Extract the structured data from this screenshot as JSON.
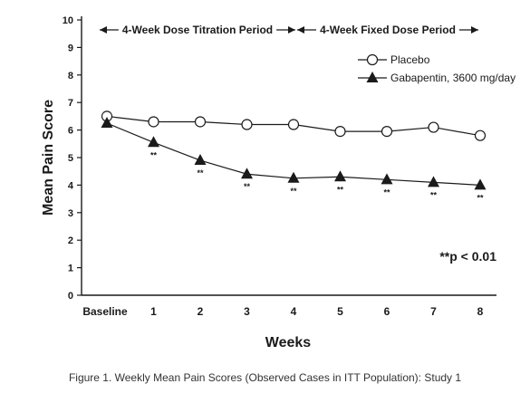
{
  "chart_data": {
    "type": "line",
    "categories": [
      "Baseline",
      "1",
      "2",
      "3",
      "4",
      "5",
      "6",
      "7",
      "8"
    ],
    "series": [
      {
        "name": "Placebo",
        "marker": "open-circle",
        "values": [
          6.5,
          6.3,
          6.3,
          6.2,
          6.2,
          5.95,
          5.95,
          6.1,
          5.8
        ]
      },
      {
        "name": "Gabapentin, 3600 mg/day",
        "marker": "filled-triangle",
        "values": [
          6.25,
          5.55,
          4.9,
          4.4,
          4.25,
          4.3,
          4.2,
          4.1,
          4.0
        ],
        "significance": [
          "",
          "**",
          "**",
          "**",
          "**",
          "**",
          "**",
          "**",
          "**"
        ]
      }
    ],
    "ylim": [
      0,
      10
    ],
    "yticks": [
      "0",
      "1",
      "2",
      "3",
      "4",
      "5",
      "6",
      "7",
      "8",
      "9",
      "10"
    ],
    "xlabel": "Weeks",
    "ylabel": "Mean Pain Score",
    "legend_position": "top-right",
    "grid": false,
    "periods": [
      {
        "label": "4-Week Dose Titration Period",
        "from": 0,
        "to": 4
      },
      {
        "label": "4-Week Fixed Dose Period",
        "from": 4,
        "to": 8
      }
    ],
    "annotation": "**p < 0.01",
    "caption": "Figure 1. Weekly Mean Pain Scores (Observed Cases in ITT Population): Study 1",
    "colors": {
      "line": "#1a1a1a",
      "background": "#ffffff"
    }
  }
}
